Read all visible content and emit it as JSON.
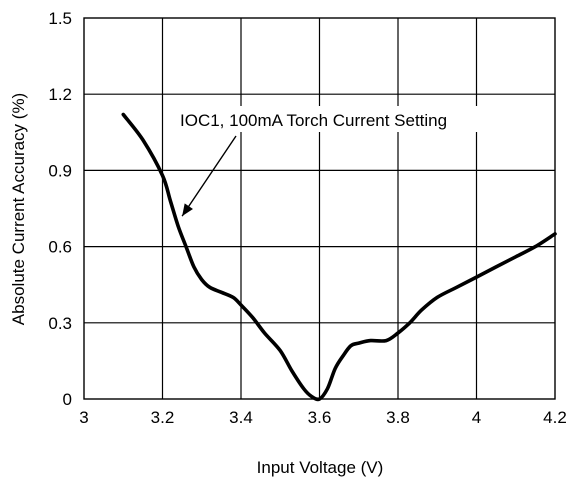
{
  "chart_data": {
    "type": "line",
    "title": "",
    "xlabel": "Input Voltage (V)",
    "ylabel": "Absolute Current Accuracy (%)",
    "xlim": [
      3,
      4.2
    ],
    "ylim": [
      0,
      1.5
    ],
    "grid": true,
    "x_ticks": [
      "3",
      "3.2",
      "3.4",
      "3.6",
      "3.8",
      "4",
      "4.2"
    ],
    "y_ticks": [
      "0",
      "0.3",
      "0.6",
      "0.9",
      "1.2",
      "1.5"
    ],
    "series": [
      {
        "name": "IOC1, 100mA Torch Current Setting",
        "x": [
          3.1,
          3.15,
          3.2,
          3.22,
          3.24,
          3.26,
          3.28,
          3.3,
          3.32,
          3.35,
          3.38,
          3.4,
          3.43,
          3.46,
          3.5,
          3.53,
          3.56,
          3.58,
          3.6,
          3.62,
          3.64,
          3.66,
          3.68,
          3.7,
          3.73,
          3.77,
          3.8,
          3.83,
          3.86,
          3.9,
          3.95,
          4.0,
          4.05,
          4.1,
          4.15,
          4.2
        ],
        "y": [
          1.12,
          1.02,
          0.88,
          0.78,
          0.68,
          0.6,
          0.52,
          0.47,
          0.44,
          0.42,
          0.4,
          0.37,
          0.32,
          0.26,
          0.19,
          0.11,
          0.04,
          0.01,
          0.0,
          0.04,
          0.12,
          0.17,
          0.21,
          0.22,
          0.23,
          0.23,
          0.26,
          0.3,
          0.35,
          0.4,
          0.44,
          0.48,
          0.52,
          0.56,
          0.6,
          0.65
        ]
      }
    ],
    "annotations": [
      {
        "text": "IOC1,  100mA  Torch Current Setting",
        "arrow_to": {
          "x": 3.25,
          "y": 0.72
        }
      }
    ]
  }
}
